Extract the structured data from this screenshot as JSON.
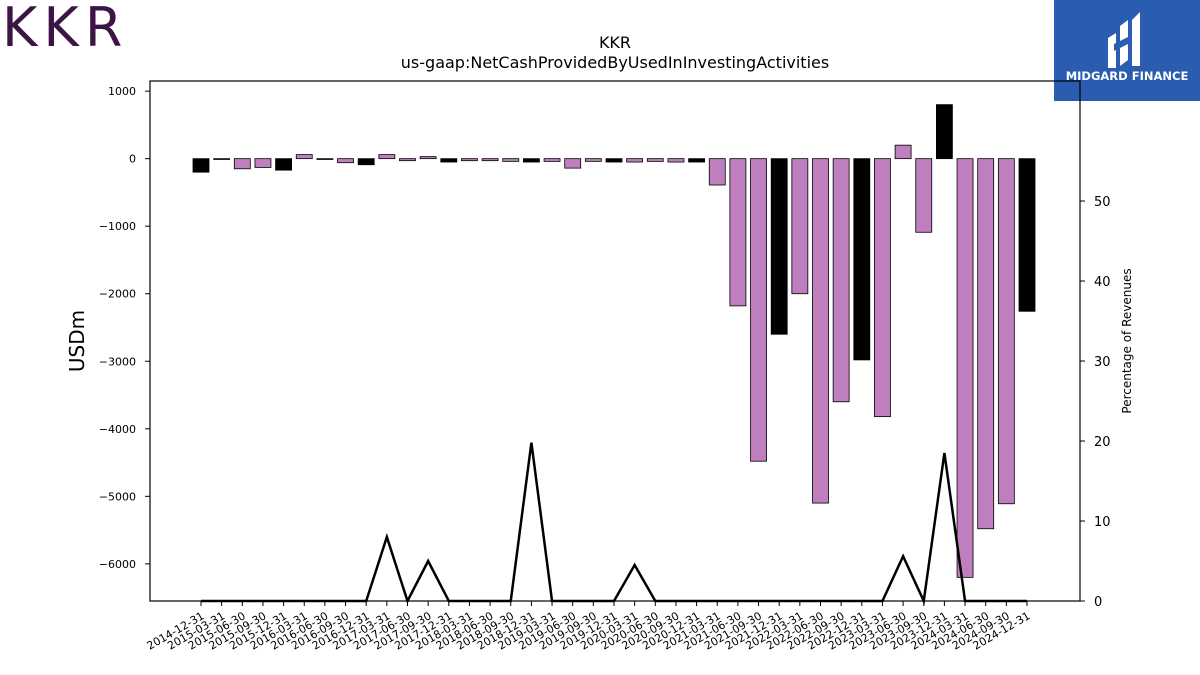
{
  "branding": {
    "company_logo_text": "KKR",
    "partner_logo_text": "MIDGARD FINANCE"
  },
  "chart_data": {
    "type": "bar",
    "title": "KKR",
    "subtitle": "us-gaap:NetCashProvidedByUsedInInvestingActivities",
    "ylabel": "USDm",
    "y2label": "Percentage of Revenues",
    "ylim": [
      -6550,
      1150
    ],
    "y2lim": [
      0,
      65
    ],
    "yticks": [
      1000,
      0,
      -1000,
      -2000,
      -3000,
      -4000,
      -5000,
      -6000
    ],
    "y2ticks": [
      0,
      10,
      20,
      30,
      40,
      50
    ],
    "colors": {
      "default": "#bf7fbf",
      "highlight": "#000000"
    },
    "categories": [
      "2014-12-31",
      "2015-03-31",
      "2015-06-30",
      "2015-09-30",
      "2015-12-31",
      "2016-03-31",
      "2016-06-30",
      "2016-09-30",
      "2016-12-31",
      "2017-03-31",
      "2017-06-30",
      "2017-09-30",
      "2017-12-31",
      "2018-03-31",
      "2018-06-30",
      "2018-09-30",
      "2018-12-31",
      "2019-03-31",
      "2019-06-30",
      "2019-09-30",
      "2019-12-31",
      "2020-03-31",
      "2020-06-30",
      "2020-09-30",
      "2020-12-31",
      "2021-03-31",
      "2021-06-30",
      "2021-09-30",
      "2021-12-31",
      "2022-03-31",
      "2022-06-30",
      "2022-09-30",
      "2022-12-31",
      "2023-03-31",
      "2023-06-30",
      "2023-09-30",
      "2023-12-31",
      "2024-03-31",
      "2024-06-30",
      "2024-09-30",
      "2024-12-31"
    ],
    "values": [
      -200,
      -10,
      -150,
      -130,
      -170,
      60,
      -10,
      -60,
      -90,
      60,
      -30,
      30,
      -50,
      -30,
      -30,
      -40,
      -50,
      -40,
      -140,
      -40,
      -50,
      -50,
      -40,
      -50,
      -50,
      -390,
      -2180,
      -4480,
      -2600,
      -2000,
      -5100,
      -3600,
      -2980,
      -3820,
      200,
      -1090,
      800,
      -6200,
      -5480,
      -5110,
      -2260
    ],
    "highlight": [
      true,
      false,
      false,
      false,
      true,
      false,
      false,
      false,
      true,
      false,
      false,
      false,
      true,
      false,
      false,
      false,
      true,
      false,
      false,
      false,
      true,
      false,
      false,
      false,
      true,
      false,
      false,
      false,
      true,
      false,
      false,
      false,
      true,
      false,
      false,
      false,
      true,
      false,
      false,
      false,
      true
    ],
    "line_series": {
      "name": "Percentage of Revenues",
      "values": [
        0,
        0,
        0,
        0,
        0,
        0,
        0,
        0,
        0,
        8,
        0,
        5,
        0,
        0,
        0,
        0,
        19.8,
        0,
        0,
        0,
        0,
        4.5,
        0,
        0,
        0,
        0,
        0,
        0,
        0,
        0,
        0,
        0,
        0,
        0,
        5.6,
        0,
        18.5,
        0,
        0,
        0,
        0
      ]
    }
  }
}
